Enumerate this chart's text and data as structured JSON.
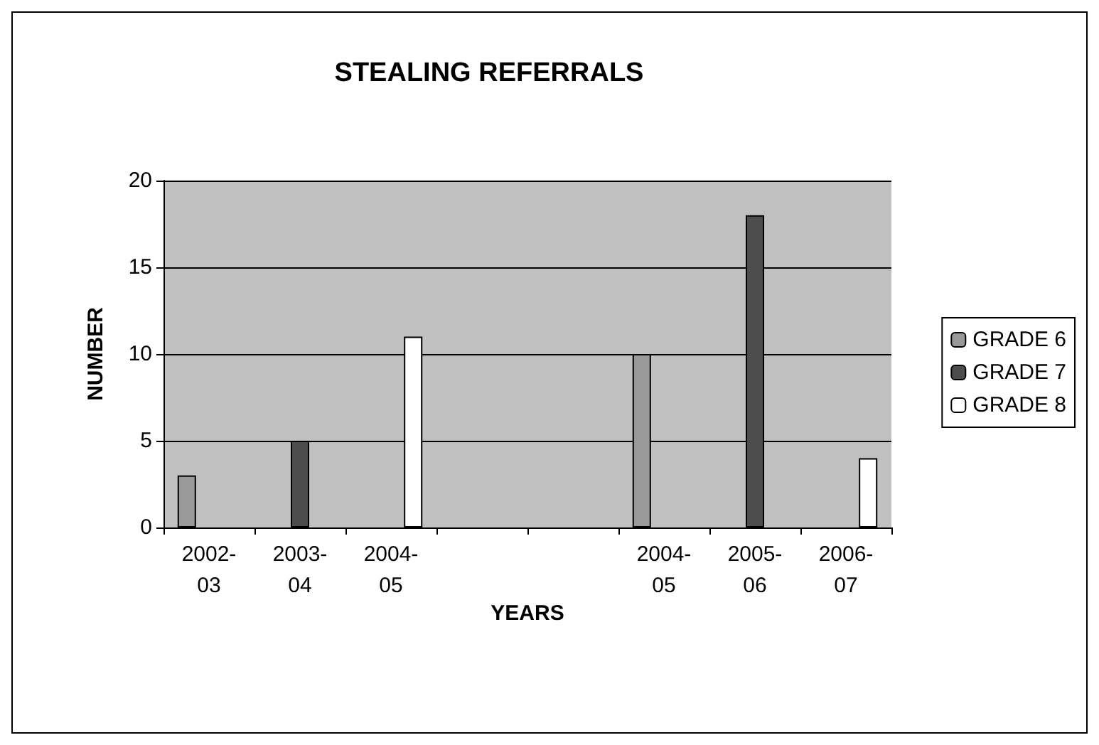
{
  "chart_data": {
    "type": "bar",
    "title": "STEALING REFERRALS",
    "xlabel": "YEARS",
    "ylabel": "NUMBER",
    "categories": [
      "2002-03",
      "2003-04",
      "2004-05",
      null,
      null,
      "2004-05",
      "2005-06",
      "2006-07"
    ],
    "series": [
      {
        "name": "GRADE 6",
        "color": "#999999",
        "values": [
          3,
          null,
          null,
          null,
          null,
          10,
          null,
          null
        ]
      },
      {
        "name": "GRADE 7",
        "color": "#4d4d4d",
        "values": [
          null,
          5,
          null,
          null,
          null,
          null,
          18,
          null
        ]
      },
      {
        "name": "GRADE 8",
        "color": "#ffffff",
        "values": [
          null,
          null,
          11,
          null,
          null,
          null,
          null,
          4
        ]
      }
    ],
    "ylim": [
      0,
      20
    ],
    "yticks": [
      0,
      5,
      10,
      15,
      20
    ],
    "grid": "y",
    "legend": "right"
  }
}
